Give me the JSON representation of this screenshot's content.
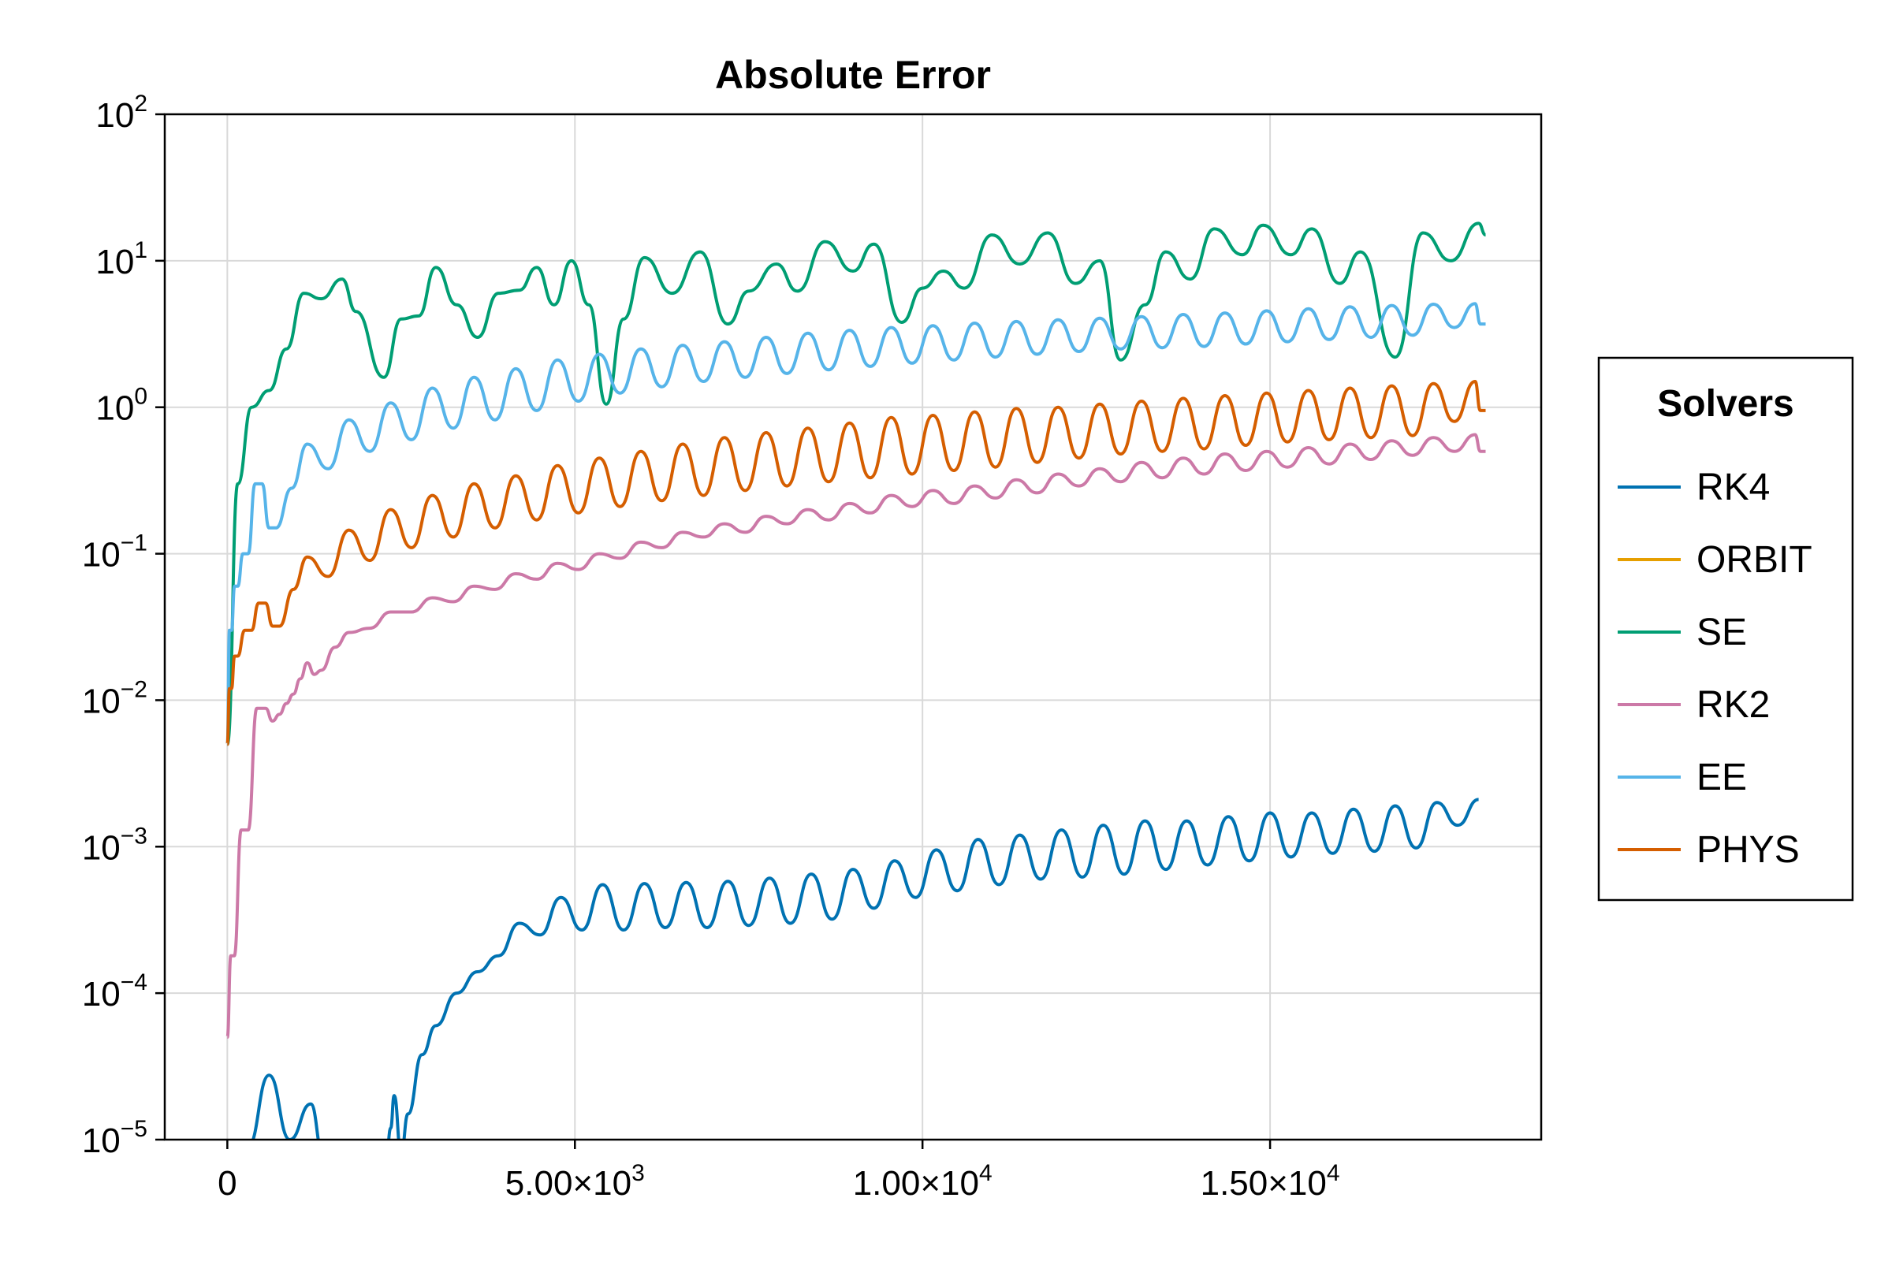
{
  "chart_data": {
    "type": "line",
    "title": "Absolute Error",
    "xlabel": "",
    "ylabel": "",
    "x_scale": "linear",
    "y_scale": "log10",
    "xlim": [
      -900,
      18900
    ],
    "ylim": [
      1e-05,
      100
    ],
    "x_ticks": [
      {
        "value": 0,
        "label": "0",
        "exp": ""
      },
      {
        "value": 5000,
        "label": "5.00×10",
        "exp": "3"
      },
      {
        "value": 10000,
        "label": "1.00×10",
        "exp": "4"
      },
      {
        "value": 15000,
        "label": "1.50×10",
        "exp": "4"
      }
    ],
    "y_ticks": [
      {
        "value": 100,
        "base": "10",
        "exp": "2"
      },
      {
        "value": 10,
        "base": "10",
        "exp": "1"
      },
      {
        "value": 1,
        "base": "10",
        "exp": "0"
      },
      {
        "value": 0.1,
        "base": "10",
        "exp": "−1"
      },
      {
        "value": 0.01,
        "base": "10",
        "exp": "−2"
      },
      {
        "value": 0.001,
        "base": "10",
        "exp": "−3"
      },
      {
        "value": 0.0001,
        "base": "10",
        "exp": "−4"
      },
      {
        "value": 1e-05,
        "base": "10",
        "exp": "−5"
      }
    ],
    "grid": true,
    "legend": {
      "title": "Solvers",
      "placement": "right"
    },
    "series": [
      {
        "name": "RK4",
        "color": "#0072b2",
        "x": [
          0,
          600,
          1200,
          1550,
          2300,
          2400,
          2600,
          3000,
          3600,
          4200,
          4800,
          5400,
          6000,
          6600,
          7200,
          7800,
          8400,
          9000,
          9600,
          10200,
          10800,
          11400,
          12000,
          12600,
          13200,
          13800,
          14400,
          15000,
          15600,
          16200,
          16800,
          17400,
          18000
        ],
        "y": [
          8e-06,
          2.75e-05,
          1.75e-05,
          9e-06,
          9e-06,
          2e-05,
          1.5e-05,
          6e-05,
          0.00014,
          0.0003,
          0.00045,
          0.00055,
          0.00056,
          0.00057,
          0.00058,
          0.00061,
          0.00065,
          0.0007,
          0.0008,
          0.00095,
          0.00112,
          0.0012,
          0.0013,
          0.0014,
          0.0015,
          0.0015,
          0.0016,
          0.0017,
          0.0017,
          0.0018,
          0.0019,
          0.002,
          0.0021
        ],
        "trough_y": [
          8e-06,
          9e-06,
          1e-05,
          8e-06,
          8e-06,
          1.2e-05,
          8e-06,
          3.8e-05,
          0.0001,
          0.00018,
          0.00025,
          0.00027,
          0.00027,
          0.00028,
          0.00028,
          0.00029,
          0.0003,
          0.00032,
          0.00038,
          0.00045,
          0.0005,
          0.00055,
          0.0006,
          0.00062,
          0.00065,
          0.0007,
          0.00075,
          0.0008,
          0.00085,
          0.0009,
          0.00093,
          0.00098,
          0.0014
        ]
      },
      {
        "name": "ORBIT",
        "color": "#e69f00",
        "x": [],
        "y": []
      },
      {
        "name": "SE",
        "color": "#009e73",
        "x": [
          0,
          150,
          350,
          600,
          850,
          1100,
          1350,
          1650,
          1850,
          2250,
          2500,
          2750,
          3000,
          3300,
          3600,
          3900,
          4200,
          4450,
          4700,
          4950,
          5200,
          5450,
          5700,
          6000,
          6400,
          6800,
          7200,
          7500,
          7900,
          8200,
          8600,
          9000,
          9300,
          9700,
          10000,
          10300,
          10600,
          11000,
          11400,
          11800,
          12200,
          12550,
          12850,
          13200,
          13500,
          13850,
          14200,
          14600,
          14900,
          15300,
          15600,
          16000,
          16300,
          16800,
          17200,
          17600,
          18000,
          18100
        ],
        "y": [
          0.005,
          0.3,
          1.0,
          1.3,
          2.5,
          6.0,
          5.5,
          7.5,
          4.5,
          1.6,
          4.0,
          4.2,
          9.0,
          5.0,
          3.0,
          6.0,
          6.3,
          9.0,
          5.0,
          10.0,
          5.0,
          1.05,
          4.0,
          10.5,
          6.0,
          11.5,
          3.7,
          6.2,
          9.5,
          6.2,
          13.5,
          8.5,
          13.0,
          3.8,
          6.5,
          8.5,
          6.5,
          15.0,
          9.5,
          15.5,
          7.0,
          10.0,
          2.1,
          5.0,
          11.5,
          7.5,
          16.5,
          11.0,
          17.5,
          11.0,
          16.5,
          7.0,
          11.5,
          2.2,
          15.5,
          10.0,
          18.0,
          15.0
        ]
      },
      {
        "name": "RK2",
        "color": "#cc79a7",
        "x": [
          0,
          100,
          300,
          550,
          750,
          950,
          1150,
          1350,
          1750,
          2350,
          2950,
          3550,
          4150,
          4750,
          5350,
          5950,
          6550,
          7150,
          7750,
          8350,
          8950,
          9550,
          10150,
          10750,
          11350,
          11950,
          12550,
          13150,
          13750,
          14350,
          14950,
          15550,
          16150,
          16750,
          17350,
          17950,
          18100
        ],
        "y": [
          5e-05,
          0.00018,
          0.0013,
          0.0088,
          0.008,
          0.011,
          0.018,
          0.016,
          0.029,
          0.04,
          0.05,
          0.06,
          0.073,
          0.086,
          0.1,
          0.12,
          0.14,
          0.16,
          0.18,
          0.2,
          0.22,
          0.25,
          0.27,
          0.29,
          0.32,
          0.35,
          0.38,
          0.42,
          0.45,
          0.48,
          0.5,
          0.53,
          0.56,
          0.59,
          0.62,
          0.65,
          0.5
        ],
        "trough_y": [
          5e-05,
          0.00018,
          0.0013,
          0.0088,
          0.0072,
          0.0095,
          0.014,
          0.015,
          0.023,
          0.031,
          0.04,
          0.047,
          0.057,
          0.067,
          0.078,
          0.093,
          0.11,
          0.13,
          0.14,
          0.16,
          0.17,
          0.19,
          0.21,
          0.22,
          0.24,
          0.26,
          0.29,
          0.31,
          0.33,
          0.35,
          0.37,
          0.39,
          0.41,
          0.44,
          0.47,
          0.5,
          0.5
        ]
      },
      {
        "name": "EE",
        "color": "#56b4e9",
        "x": [
          0,
          60,
          150,
          300,
          500,
          700,
          1150,
          1750,
          2350,
          2950,
          3550,
          4150,
          4750,
          5350,
          5950,
          6550,
          7150,
          7750,
          8350,
          8950,
          9550,
          10150,
          10750,
          11350,
          11950,
          12550,
          13150,
          13750,
          14350,
          14950,
          15550,
          16150,
          16750,
          17350,
          17950,
          18100
        ],
        "y": [
          0.005,
          0.03,
          0.06,
          0.1,
          0.3,
          0.15,
          0.56,
          0.82,
          1.07,
          1.35,
          1.6,
          1.83,
          2.1,
          2.3,
          2.5,
          2.65,
          2.8,
          3.0,
          3.2,
          3.35,
          3.5,
          3.6,
          3.75,
          3.85,
          3.95,
          4.05,
          4.15,
          4.3,
          4.4,
          4.55,
          4.7,
          4.85,
          4.95,
          5.05,
          5.1,
          3.7
        ],
        "trough_y": [
          0.005,
          0.03,
          0.06,
          0.1,
          0.3,
          0.15,
          0.28,
          0.38,
          0.5,
          0.6,
          0.72,
          0.82,
          0.95,
          1.1,
          1.25,
          1.38,
          1.5,
          1.6,
          1.7,
          1.8,
          1.9,
          2.0,
          2.1,
          2.2,
          2.3,
          2.4,
          2.5,
          2.55,
          2.6,
          2.7,
          2.8,
          2.9,
          3.0,
          3.1,
          3.5,
          3.7
        ]
      },
      {
        "name": "PHYS",
        "color": "#d55e00",
        "x": [
          0,
          60,
          150,
          350,
          550,
          750,
          1150,
          1750,
          2350,
          2950,
          3550,
          4150,
          4750,
          5350,
          5950,
          6550,
          7150,
          7750,
          8350,
          8950,
          9550,
          10150,
          10750,
          11350,
          11950,
          12550,
          13150,
          13750,
          14350,
          14950,
          15550,
          16150,
          16750,
          17350,
          17950,
          18100
        ],
        "y": [
          0.005,
          0.012,
          0.02,
          0.03,
          0.046,
          0.032,
          0.095,
          0.145,
          0.2,
          0.25,
          0.3,
          0.34,
          0.4,
          0.45,
          0.5,
          0.56,
          0.62,
          0.67,
          0.72,
          0.78,
          0.85,
          0.88,
          0.93,
          0.98,
          1.0,
          1.05,
          1.1,
          1.15,
          1.2,
          1.25,
          1.3,
          1.35,
          1.4,
          1.45,
          1.5,
          0.95
        ],
        "trough_y": [
          0.005,
          0.012,
          0.02,
          0.03,
          0.046,
          0.032,
          0.057,
          0.07,
          0.09,
          0.11,
          0.13,
          0.15,
          0.17,
          0.19,
          0.21,
          0.23,
          0.25,
          0.27,
          0.29,
          0.31,
          0.33,
          0.35,
          0.37,
          0.39,
          0.42,
          0.45,
          0.48,
          0.5,
          0.52,
          0.55,
          0.58,
          0.6,
          0.62,
          0.64,
          0.8,
          0.95
        ]
      }
    ]
  }
}
